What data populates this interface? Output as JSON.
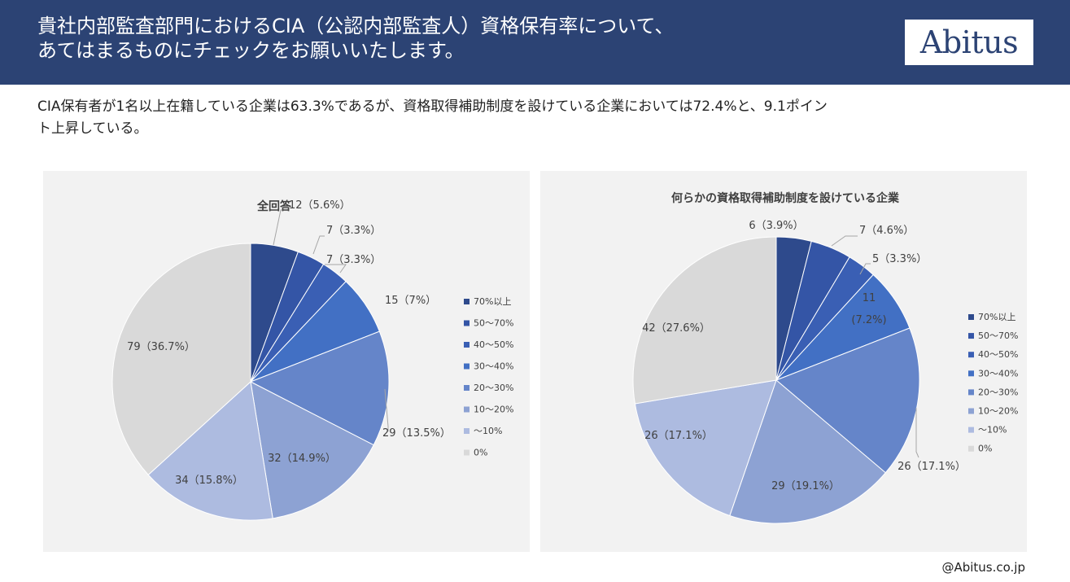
{
  "header": {
    "title_line1": "貴社内部監査部門におけるCIA（公認内部監査人）資格保有率について、",
    "title_line2": "あてはまるものにチェックをお願いいたします。",
    "logo_text": "Abitus"
  },
  "summary": {
    "line1": "CIA保有者が1名以上在籍している企業は63.3%であるが、資格取得補助制度を設けている企業においては72.4%と、9.1ポイン",
    "line2": "ト上昇している。"
  },
  "footer": {
    "credit": "@Abitus.co.jp"
  },
  "colors": [
    "#2e4a8c",
    "#3455a6",
    "#3a5fb4",
    "#4270c4",
    "#6585c9",
    "#8da2d3",
    "#adbbe0",
    "#d9d9d9"
  ],
  "chart_data": [
    {
      "type": "pie",
      "title": "全回答",
      "categories": [
        "70%以上",
        "50～70%",
        "40～50%",
        "30～40%",
        "20～30%",
        "10～20%",
        "～10%",
        "0%"
      ],
      "values": [
        12,
        7,
        7,
        15,
        29,
        32,
        34,
        79
      ],
      "labels": [
        "12（5.6%）",
        "7（3.3%）",
        "7（3.3%）",
        "15（7%）",
        "29（13.5%）",
        "32（14.9%）",
        "34（15.8%）",
        "79（36.7%）"
      ],
      "legend": "right"
    },
    {
      "type": "pie",
      "title": "何らかの資格取得補助制度を設けている企業",
      "categories": [
        "70%以上",
        "50～70%",
        "40～50%",
        "30～40%",
        "20～30%",
        "10～20%",
        "～10%",
        "0%"
      ],
      "values": [
        6,
        7,
        5,
        11,
        26,
        29,
        26,
        42
      ],
      "labels": [
        "6（3.9%）",
        "7（4.6%）",
        "5（3.3%）",
        "11",
        "26（17.1%）",
        "29（19.1%）",
        "26（17.1%）",
        "42（27.6%）"
      ],
      "label_extra": {
        "3": "(7.2%)"
      },
      "legend": "right"
    }
  ]
}
